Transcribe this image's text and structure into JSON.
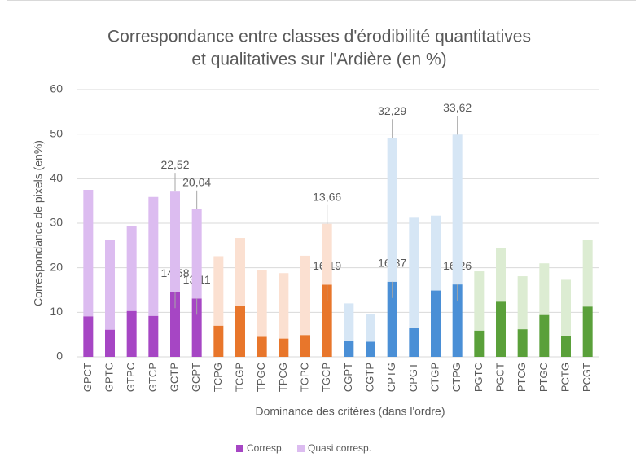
{
  "chart_data": {
    "type": "stacked-bar",
    "title": [
      "Correspondance  entre classes d'érodibilité quantitatives",
      "et qualitatives sur l'Ardière (en %)"
    ],
    "x_label": "Dominance des critères (dans l'ordre)",
    "y_label": "Correspondance de pixels (en%)",
    "categories": [
      "GPCT",
      "GPTC",
      "GTPC",
      "GTCP",
      "GCTP",
      "GCPT",
      "TCPG",
      "TCGP",
      "TPGC",
      "TPCG",
      "TGPC",
      "TGCP",
      "CGPT",
      "CGTP",
      "CPTG",
      "CPGT",
      "CTGP",
      "CTPG",
      "PGTC",
      "PGCT",
      "PTCG",
      "PTGC",
      "PCTG",
      "PCGT"
    ],
    "series": [
      {
        "name": "Corresp.",
        "colors": [
          "#a646c4",
          "#a646c4",
          "#a646c4",
          "#a646c4",
          "#a646c4",
          "#a646c4",
          "#e8762b",
          "#e8762b",
          "#e8762b",
          "#e8762b",
          "#e8762b",
          "#e8762b",
          "#4a8fd6",
          "#4a8fd6",
          "#4a8fd6",
          "#4a8fd6",
          "#4a8fd6",
          "#4a8fd6",
          "#5aa03a",
          "#5aa03a",
          "#5aa03a",
          "#5aa03a",
          "#5aa03a",
          "#5aa03a"
        ],
        "values": [
          9.1,
          6.1,
          10.3,
          9.2,
          14.58,
          13.11,
          7.0,
          11.4,
          4.5,
          4.1,
          4.9,
          16.19,
          3.6,
          3.4,
          16.87,
          6.5,
          14.9,
          16.26,
          5.9,
          12.4,
          6.2,
          9.4,
          4.6,
          11.3
        ],
        "value_labels": [
          null,
          null,
          null,
          null,
          "14,58",
          "13,11",
          null,
          null,
          null,
          null,
          null,
          "16,19",
          null,
          null,
          "16,87",
          null,
          null,
          "16,26",
          null,
          null,
          null,
          null,
          null,
          null
        ]
      },
      {
        "name": "Quasi corresp.",
        "colors": [
          "#dcbcf0",
          "#dcbcf0",
          "#dcbcf0",
          "#dcbcf0",
          "#dcbcf0",
          "#dcbcf0",
          "#fbe0d1",
          "#fbe0d1",
          "#fbe0d1",
          "#fbe0d1",
          "#fbe0d1",
          "#fbe0d1",
          "#d6e6f5",
          "#d6e6f5",
          "#d6e6f5",
          "#d6e6f5",
          "#d6e6f5",
          "#d6e6f5",
          "#dcecd2",
          "#dcecd2",
          "#dcecd2",
          "#dcecd2",
          "#dcecd2",
          "#dcecd2"
        ],
        "values": [
          28.4,
          20.1,
          19.1,
          26.7,
          22.52,
          20.04,
          15.6,
          15.3,
          14.9,
          14.7,
          17.8,
          13.66,
          8.4,
          6.2,
          32.29,
          24.9,
          16.8,
          33.62,
          13.3,
          12.0,
          11.9,
          11.6,
          12.7,
          14.9
        ],
        "value_labels": [
          null,
          null,
          null,
          null,
          "22,52",
          "20,04",
          null,
          null,
          null,
          null,
          null,
          "13,66",
          null,
          null,
          "32,29",
          null,
          null,
          "33,62",
          null,
          null,
          null,
          null,
          null,
          null
        ]
      }
    ],
    "ylim": [
      0,
      60
    ],
    "yticks": [
      0,
      10,
      20,
      30,
      40,
      50,
      60
    ],
    "grid": true,
    "legend": "bottom"
  }
}
